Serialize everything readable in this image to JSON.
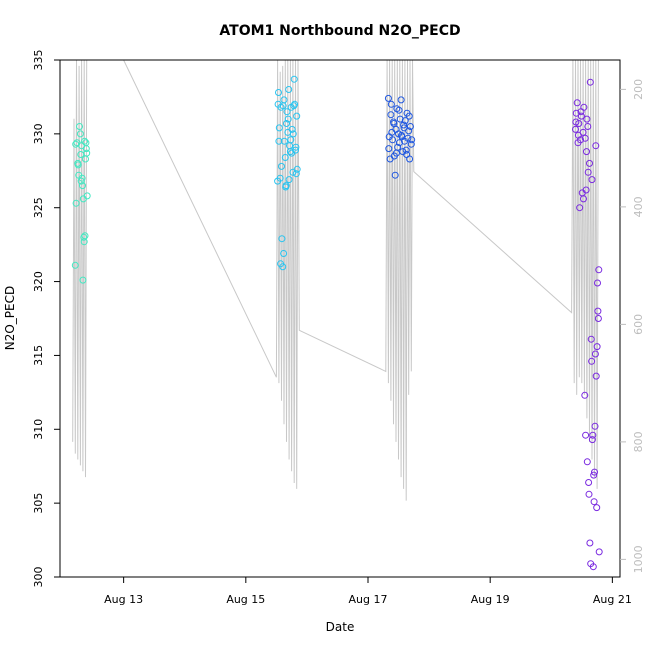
{
  "chart_data": {
    "type": "scatter",
    "title": "ATOM1 Northbound N2O_PECD",
    "xlabel": "Date",
    "ylabel": "N2O_PECD",
    "x_axis": {
      "type": "date",
      "range": [
        "2016-08-11T23:00",
        "2016-08-21T03:00"
      ],
      "ticks": [
        {
          "value": "2016-08-13T00:00",
          "label": "Aug 13"
        },
        {
          "value": "2016-08-15T00:00",
          "label": "Aug 15"
        },
        {
          "value": "2016-08-17T00:00",
          "label": "Aug 17"
        },
        {
          "value": "2016-08-19T00:00",
          "label": "Aug 19"
        },
        {
          "value": "2016-08-21T00:00",
          "label": "Aug 21"
        }
      ]
    },
    "y_axis": {
      "range": [
        300,
        335
      ],
      "ticks": [
        300,
        305,
        310,
        315,
        320,
        325,
        330,
        335
      ]
    },
    "y2_axis": {
      "range": [
        1030,
        150
      ],
      "ticks": [
        200,
        400,
        600,
        800,
        1000
      ],
      "color": "#bdbdbd"
    },
    "grid": false,
    "legend": "none",
    "profile_color": "#c8c8c8",
    "series": [
      {
        "color": "#43e8c2",
        "x": [
          "2016-08-12T05:00",
          "2016-08-12T05:20",
          "2016-08-12T05:40",
          "2016-08-12T06:00",
          "2016-08-12T06:20",
          "2016-08-12T06:40",
          "2016-08-12T07:00",
          "2016-08-12T07:20",
          "2016-08-12T07:30",
          "2016-08-12T07:40",
          "2016-08-12T07:50",
          "2016-08-12T08:00",
          "2016-08-12T08:10",
          "2016-08-12T08:20",
          "2016-08-12T08:30",
          "2016-08-12T08:40",
          "2016-08-12T09:00",
          "2016-08-12T09:20",
          "2016-08-12T09:40",
          "2016-08-12T05:10",
          "2016-08-12T06:10",
          "2016-08-12T07:10",
          "2016-08-12T08:50",
          "2016-08-12T09:10",
          "2016-08-12T09:30"
        ],
        "y": [
          321.1,
          325.3,
          329.4,
          328.0,
          327.2,
          330.5,
          330.0,
          326.8,
          329.2,
          327.0,
          326.5,
          320.1,
          325.6,
          323.0,
          322.7,
          329.5,
          328.3,
          329.0,
          325.8,
          329.3,
          327.9,
          328.6,
          323.1,
          329.4,
          328.7
        ]
      },
      {
        "color": "#29c4f0",
        "x": [
          "2016-08-15T12:30",
          "2016-08-15T12:50",
          "2016-08-15T13:10",
          "2016-08-15T13:30",
          "2016-08-15T13:50",
          "2016-08-15T14:10",
          "2016-08-15T14:30",
          "2016-08-15T14:50",
          "2016-08-15T15:10",
          "2016-08-15T15:30",
          "2016-08-15T15:50",
          "2016-08-15T16:10",
          "2016-08-15T16:30",
          "2016-08-15T16:50",
          "2016-08-15T17:10",
          "2016-08-15T17:30",
          "2016-08-15T17:50",
          "2016-08-15T18:10",
          "2016-08-15T18:30",
          "2016-08-15T18:50",
          "2016-08-15T19:10",
          "2016-08-15T19:30",
          "2016-08-15T19:50",
          "2016-08-15T13:00",
          "2016-08-15T14:00",
          "2016-08-15T15:00",
          "2016-08-15T16:00",
          "2016-08-15T17:00",
          "2016-08-15T18:00",
          "2016-08-15T19:00",
          "2016-08-15T20:00",
          "2016-08-15T12:40",
          "2016-08-15T13:40",
          "2016-08-15T14:40",
          "2016-08-15T15:40",
          "2016-08-15T16:40",
          "2016-08-15T17:40",
          "2016-08-15T18:40",
          "2016-08-15T19:40",
          "2016-08-15T20:10"
        ],
        "y": [
          326.8,
          332.8,
          330.4,
          327.0,
          331.8,
          322.9,
          321.0,
          321.9,
          329.5,
          328.4,
          326.5,
          331.5,
          330.1,
          333.0,
          329.2,
          328.8,
          331.8,
          330.3,
          327.4,
          331.9,
          332.0,
          328.9,
          327.3,
          329.5,
          327.8,
          332.3,
          330.7,
          326.9,
          328.7,
          333.7,
          331.2,
          332.0,
          321.2,
          331.9,
          326.4,
          331.0,
          329.6,
          330.0,
          329.1,
          327.6
        ]
      },
      {
        "color": "#1f57e0",
        "x": [
          "2016-08-17T08:00",
          "2016-08-17T08:20",
          "2016-08-17T08:40",
          "2016-08-17T09:00",
          "2016-08-17T09:20",
          "2016-08-17T09:40",
          "2016-08-17T10:00",
          "2016-08-17T10:20",
          "2016-08-17T10:40",
          "2016-08-17T11:00",
          "2016-08-17T11:20",
          "2016-08-17T11:40",
          "2016-08-17T12:00",
          "2016-08-17T12:20",
          "2016-08-17T12:40",
          "2016-08-17T13:00",
          "2016-08-17T13:20",
          "2016-08-17T13:40",
          "2016-08-17T14:00",
          "2016-08-17T14:20",
          "2016-08-17T14:40",
          "2016-08-17T15:00",
          "2016-08-17T15:20",
          "2016-08-17T15:40",
          "2016-08-17T16:00",
          "2016-08-17T16:20",
          "2016-08-17T16:40",
          "2016-08-17T17:00",
          "2016-08-17T08:10",
          "2016-08-17T09:10",
          "2016-08-17T10:10",
          "2016-08-17T11:10",
          "2016-08-17T12:10",
          "2016-08-17T13:10",
          "2016-08-17T14:10",
          "2016-08-17T15:10",
          "2016-08-17T16:10",
          "2016-08-17T17:10"
        ],
        "y": [
          332.4,
          329.8,
          328.3,
          331.3,
          330.1,
          329.6,
          330.8,
          328.5,
          327.2,
          330.3,
          331.7,
          329.1,
          330.0,
          329.4,
          331.0,
          332.3,
          329.8,
          328.8,
          330.6,
          329.5,
          330.9,
          328.9,
          331.4,
          329.7,
          330.2,
          328.3,
          330.5,
          329.3,
          329.0,
          332.0,
          330.7,
          328.7,
          331.6,
          329.9,
          330.4,
          328.6,
          331.2,
          329.6
        ]
      },
      {
        "color": "#7a2ae0",
        "x": [
          "2016-08-20T09:30",
          "2016-08-20T09:50",
          "2016-08-20T10:10",
          "2016-08-20T10:30",
          "2016-08-20T10:50",
          "2016-08-20T11:10",
          "2016-08-20T11:30",
          "2016-08-20T11:50",
          "2016-08-20T12:10",
          "2016-08-20T12:30",
          "2016-08-20T12:50",
          "2016-08-20T13:10",
          "2016-08-20T13:30",
          "2016-08-20T13:50",
          "2016-08-20T14:10",
          "2016-08-20T14:30",
          "2016-08-20T14:50",
          "2016-08-20T15:10",
          "2016-08-20T15:30",
          "2016-08-20T15:50",
          "2016-08-20T16:10",
          "2016-08-20T16:30",
          "2016-08-20T16:50",
          "2016-08-20T17:10",
          "2016-08-20T17:30",
          "2016-08-20T17:50",
          "2016-08-20T18:10",
          "2016-08-20T18:30",
          "2016-08-20T09:40",
          "2016-08-20T10:40",
          "2016-08-20T11:40",
          "2016-08-20T12:40",
          "2016-08-20T13:40",
          "2016-08-20T14:40",
          "2016-08-20T15:40",
          "2016-08-20T16:40",
          "2016-08-20T17:40",
          "2016-08-20T18:20",
          "2016-08-20T18:40",
          "2016-08-20T14:20",
          "2016-08-20T15:20",
          "2016-08-20T16:20",
          "2016-08-20T17:20",
          "2016-08-20T15:00",
          "2016-08-20T16:00",
          "2016-08-20T17:00",
          "2016-08-20T18:00",
          "2016-08-20T18:50",
          "2016-08-20T14:00",
          "2016-08-20T13:20"
        ],
        "y": [
          330.3,
          331.4,
          332.1,
          329.4,
          330.7,
          325.0,
          329.6,
          331.2,
          326.0,
          330.1,
          331.8,
          312.3,
          309.6,
          328.8,
          307.8,
          327.4,
          305.6,
          302.3,
          300.9,
          314.6,
          309.3,
          300.7,
          305.1,
          310.2,
          329.2,
          304.7,
          319.9,
          317.5,
          330.8,
          329.9,
          331.5,
          325.6,
          326.2,
          306.4,
          316.1,
          306.9,
          313.6,
          318.0,
          320.8,
          330.5,
          333.5,
          309.6,
          315.1,
          328.0,
          326.9,
          307.1,
          315.6,
          301.7,
          331.0,
          329.7
        ]
      }
    ],
    "profile": {
      "x": [
        "2016-08-12T04:00",
        "2016-08-12T04:30",
        "2016-08-12T05:00",
        "2016-08-12T05:30",
        "2016-08-12T06:00",
        "2016-08-12T06:30",
        "2016-08-12T07:00",
        "2016-08-12T07:30",
        "2016-08-12T08:00",
        "2016-08-12T08:30",
        "2016-08-12T09:00",
        "2016-08-12T09:30",
        "2016-08-12T10:00",
        "2016-08-13T00:00",
        "2016-08-15T12:00",
        "2016-08-15T12:30",
        "2016-08-15T13:00",
        "2016-08-15T13:30",
        "2016-08-15T14:00",
        "2016-08-15T14:30",
        "2016-08-15T15:00",
        "2016-08-15T15:30",
        "2016-08-15T16:00",
        "2016-08-15T16:30",
        "2016-08-15T17:00",
        "2016-08-15T17:30",
        "2016-08-15T18:00",
        "2016-08-15T18:30",
        "2016-08-15T19:00",
        "2016-08-15T19:30",
        "2016-08-15T20:00",
        "2016-08-15T20:30",
        "2016-08-15T21:00",
        "2016-08-17T07:00",
        "2016-08-17T07:30",
        "2016-08-17T08:00",
        "2016-08-17T08:30",
        "2016-08-17T09:00",
        "2016-08-17T09:30",
        "2016-08-17T10:00",
        "2016-08-17T10:30",
        "2016-08-17T11:00",
        "2016-08-17T11:30",
        "2016-08-17T12:00",
        "2016-08-17T12:30",
        "2016-08-17T13:00",
        "2016-08-17T13:30",
        "2016-08-17T14:00",
        "2016-08-17T14:30",
        "2016-08-17T15:00",
        "2016-08-17T15:30",
        "2016-08-17T16:00",
        "2016-08-17T16:30",
        "2016-08-17T17:00",
        "2016-08-17T17:30",
        "2016-08-17T18:00",
        "2016-08-20T08:00",
        "2016-08-20T08:30",
        "2016-08-20T09:00",
        "2016-08-20T09:30",
        "2016-08-20T10:00",
        "2016-08-20T10:30",
        "2016-08-20T11:00",
        "2016-08-20T11:30",
        "2016-08-20T12:00",
        "2016-08-20T12:30",
        "2016-08-20T13:00",
        "2016-08-20T13:30",
        "2016-08-20T14:00",
        "2016-08-20T14:30",
        "2016-08-20T15:00",
        "2016-08-20T15:30",
        "2016-08-20T16:00",
        "2016-08-20T16:30",
        "2016-08-20T17:00",
        "2016-08-20T17:30",
        "2016-08-20T18:00",
        "2016-08-20T18:30",
        "2016-08-20T19:00"
      ],
      "pressure": [
        800,
        250,
        820,
        150,
        830,
        160,
        840,
        150,
        850,
        150,
        860,
        150,
        150,
        150,
        690,
        150,
        700,
        170,
        730,
        160,
        770,
        150,
        800,
        150,
        830,
        150,
        850,
        150,
        870,
        150,
        880,
        150,
        610,
        680,
        150,
        700,
        150,
        730,
        150,
        770,
        150,
        800,
        150,
        830,
        150,
        860,
        150,
        880,
        150,
        900,
        150,
        720,
        150,
        680,
        150,
        340,
        580,
        150,
        700,
        150,
        720,
        150,
        690,
        150,
        700,
        150,
        720,
        150,
        760,
        150,
        800,
        150,
        830,
        150,
        860,
        150,
        880,
        150,
        150
      ]
    }
  }
}
